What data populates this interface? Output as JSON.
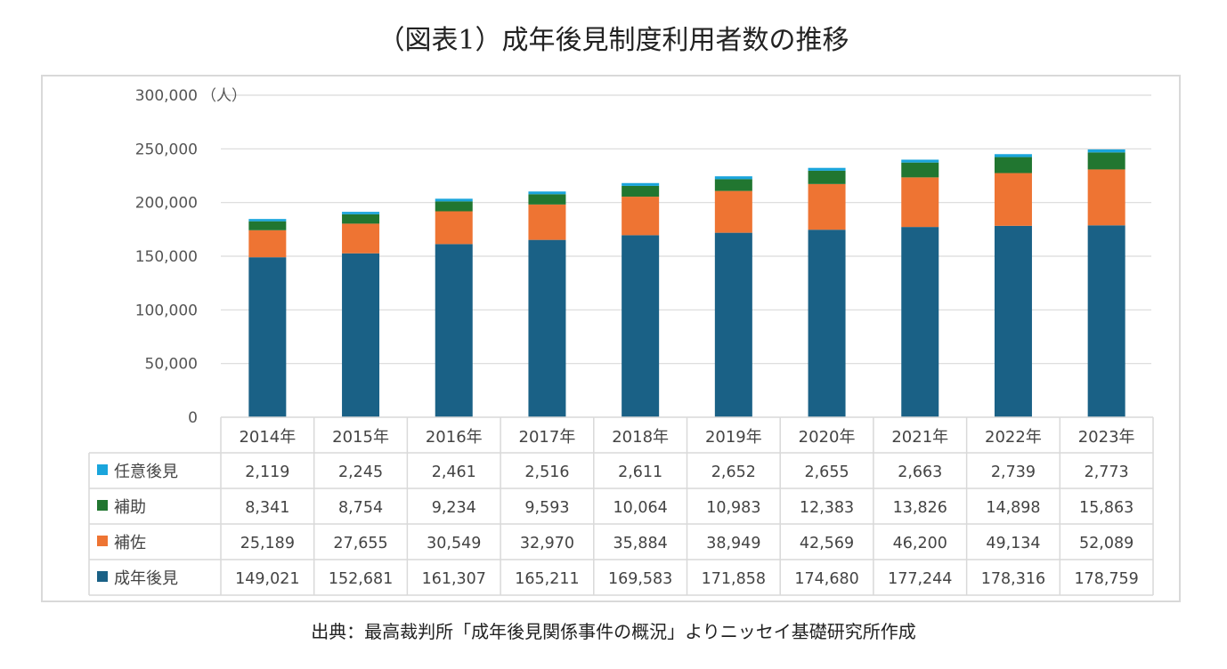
{
  "title": "（図表1）成年後見制度利用者数の推移",
  "source": "出典：最高裁判所「成年後見関係事件の概況」よりニッセイ基礎研究所作成",
  "chart_data": {
    "type": "bar",
    "stacked": true,
    "categories": [
      "2014年",
      "2015年",
      "2016年",
      "2017年",
      "2018年",
      "2019年",
      "2020年",
      "2021年",
      "2022年",
      "2023年"
    ],
    "series": [
      {
        "name": "成年後見",
        "color": "#1a6186",
        "values": [
          149021,
          152681,
          161307,
          165211,
          169583,
          171858,
          174680,
          177244,
          178316,
          178759
        ],
        "labels": [
          "149,021",
          "152,681",
          "161,307",
          "165,211",
          "169,583",
          "171,858",
          "174,680",
          "177,244",
          "178,316",
          "178,759"
        ]
      },
      {
        "name": "補佐",
        "color": "#ee7433",
        "values": [
          25189,
          27655,
          30549,
          32970,
          35884,
          38949,
          42569,
          46200,
          49134,
          52089
        ],
        "labels": [
          "25,189",
          "27,655",
          "30,549",
          "32,970",
          "35,884",
          "38,949",
          "42,569",
          "46,200",
          "49,134",
          "52,089"
        ]
      },
      {
        "name": "補助",
        "color": "#217630",
        "values": [
          8341,
          8754,
          9234,
          9593,
          10064,
          10983,
          12383,
          13826,
          14898,
          15863
        ],
        "labels": [
          "8,341",
          "8,754",
          "9,234",
          "9,593",
          "10,064",
          "10,983",
          "12,383",
          "13,826",
          "14,898",
          "15,863"
        ]
      },
      {
        "name": "任意後見",
        "color": "#1aa5dc",
        "values": [
          2119,
          2245,
          2461,
          2516,
          2611,
          2652,
          2655,
          2663,
          2739,
          2773
        ],
        "labels": [
          "2,119",
          "2,245",
          "2,461",
          "2,516",
          "2,611",
          "2,652",
          "2,655",
          "2,663",
          "2,739",
          "2,773"
        ]
      }
    ],
    "table_row_order": [
      3,
      2,
      1,
      0
    ],
    "ylim": [
      0,
      300000
    ],
    "yticks": [
      0,
      50000,
      100000,
      150000,
      200000,
      250000,
      300000
    ],
    "ytick_labels": [
      "0",
      "50,000",
      "100,000",
      "150,000",
      "200,000",
      "250,000",
      "300,000"
    ],
    "yunit": "（人）",
    "grid": true,
    "legend": "data-table"
  }
}
